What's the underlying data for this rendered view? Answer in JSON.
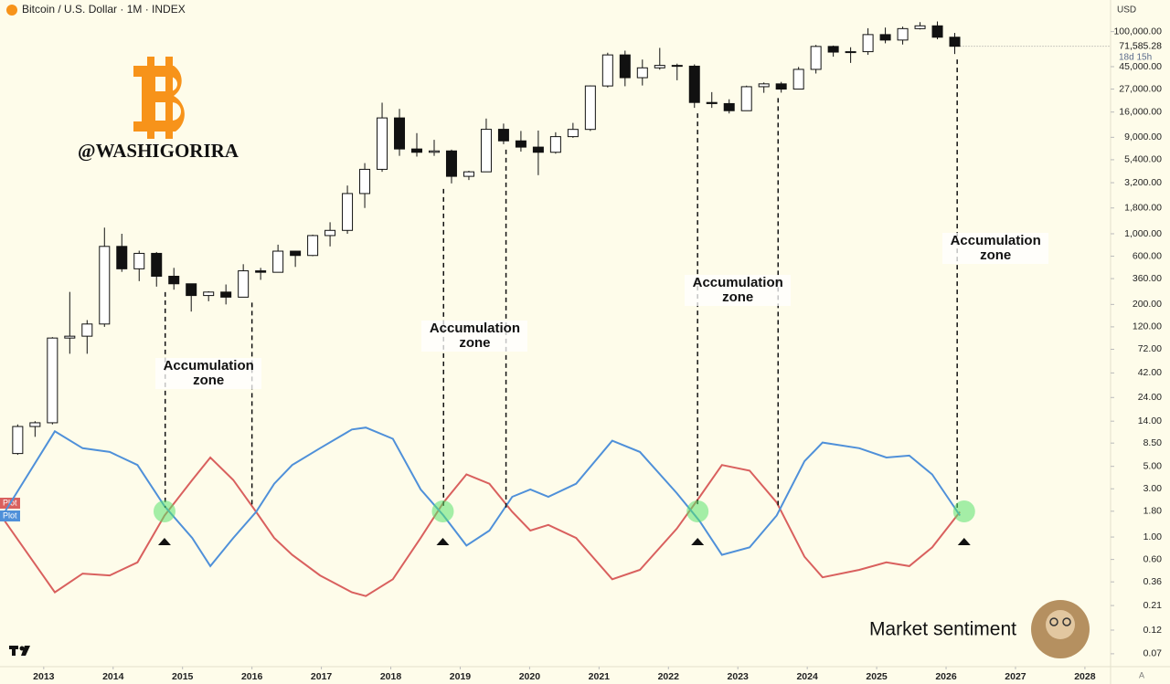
{
  "chart_data": {
    "type": "candlestick",
    "title": "Bitcoin / U.S. Dollar · 1M · INDEX",
    "currency": "USD",
    "watermark": "@WASHIGORIRA",
    "caption": "Market sentiment",
    "log_scale": true,
    "xlim": [
      2012.37,
      2028.37
    ],
    "xticks": [
      2013,
      2014,
      2015,
      2016,
      2017,
      2018,
      2019,
      2020,
      2021,
      2022,
      2023,
      2024,
      2025,
      2026,
      2027,
      2028
    ],
    "ylim": [
      0.0522,
      205400
    ],
    "yticks": [
      {
        "value": 100000,
        "label": "100,000.00"
      },
      {
        "value": 45000,
        "label": "45,000.00"
      },
      {
        "value": 27000,
        "label": "27,000.00"
      },
      {
        "value": 16000,
        "label": "16,000.00"
      },
      {
        "value": 9000,
        "label": "9,000.00"
      },
      {
        "value": 5400,
        "label": "5,400.00"
      },
      {
        "value": 3200,
        "label": "3,200.00"
      },
      {
        "value": 1800,
        "label": "1,800.00"
      },
      {
        "value": 1000,
        "label": "1,000.00"
      },
      {
        "value": 600,
        "label": "600.00"
      },
      {
        "value": 360,
        "label": "360.00"
      },
      {
        "value": 200,
        "label": "200.00"
      },
      {
        "value": 120,
        "label": "120.00"
      },
      {
        "value": 72,
        "label": "72.00"
      },
      {
        "value": 42,
        "label": "42.00"
      },
      {
        "value": 24,
        "label": "24.00"
      },
      {
        "value": 14,
        "label": "14.00"
      },
      {
        "value": 8.5,
        "label": "8.50"
      },
      {
        "value": 5,
        "label": "5.00"
      },
      {
        "value": 3,
        "label": "3.00"
      },
      {
        "value": 1.8,
        "label": "1.80"
      },
      {
        "value": 1,
        "label": "1.00"
      },
      {
        "value": 0.6,
        "label": "0.60"
      },
      {
        "value": 0.36,
        "label": "0.36"
      },
      {
        "value": 0.21,
        "label": "0.21"
      },
      {
        "value": 0.12,
        "label": "0.12"
      },
      {
        "value": 0.07,
        "label": "0.07"
      }
    ],
    "last_price": {
      "value": 71585.28,
      "label": "71,585.28"
    },
    "countdown": "18d 15h",
    "candles": {
      "x": [
        2012.625,
        2012.875,
        2013.125,
        2013.375,
        2013.625,
        2013.875,
        2014.125,
        2014.375,
        2014.625,
        2014.875,
        2015.125,
        2015.375,
        2015.625,
        2015.875,
        2016.125,
        2016.375,
        2016.625,
        2016.875,
        2017.125,
        2017.375,
        2017.625,
        2017.875,
        2018.125,
        2018.375,
        2018.625,
        2018.875,
        2019.125,
        2019.375,
        2019.625,
        2019.875,
        2020.125,
        2020.375,
        2020.625,
        2020.875,
        2021.125,
        2021.375,
        2021.625,
        2021.875,
        2022.125,
        2022.375,
        2022.625,
        2022.875,
        2023.125,
        2023.375,
        2023.625,
        2023.875,
        2024.125,
        2024.375,
        2024.625,
        2024.875,
        2025.125,
        2025.375,
        2025.625,
        2025.875,
        2026.125
      ],
      "open": [
        6.7,
        12.4,
        13.5,
        93,
        97,
        128,
        750,
        450,
        640,
        380,
        320,
        245,
        265,
        236,
        430,
        416,
        673,
        610,
        960,
        1080,
        2500,
        4340,
        14000,
        6900,
        6400,
        6600,
        3700,
        4100,
        10800,
        8300,
        7200,
        6400,
        9140,
        10780,
        29000,
        58800,
        35000,
        43800,
        46300,
        45500,
        19900,
        19400,
        16500,
        28500,
        30400,
        27000,
        42300,
        71300,
        62700,
        63300,
        93400,
        82500,
        107000,
        114000,
        88000
      ],
      "high": [
        13,
        14,
        95,
        266,
        140,
        1150,
        1000,
        680,
        660,
        460,
        320,
        270,
        315,
        500,
        460,
        780,
        680,
        980,
        1300,
        3000,
        5000,
        19800,
        17200,
        9900,
        8500,
        6800,
        4200,
        13800,
        12300,
        10400,
        10500,
        10100,
        12500,
        29300,
        61800,
        64800,
        52900,
        69000,
        48200,
        47400,
        25200,
        21400,
        29200,
        31400,
        31800,
        44700,
        73800,
        72800,
        70000,
        108000,
        109600,
        112000,
        124000,
        126000,
        97000
      ],
      "low": [
        6.5,
        9.8,
        13,
        65,
        65,
        120,
        420,
        340,
        300,
        280,
        170,
        215,
        200,
        236,
        350,
        415,
        470,
        600,
        750,
        1000,
        1800,
        4100,
        5900,
        5800,
        5900,
        3150,
        3400,
        4100,
        7700,
        6500,
        3800,
        6200,
        8900,
        10400,
        28000,
        28800,
        29300,
        42000,
        33000,
        17600,
        17600,
        15500,
        16500,
        24800,
        24900,
        26900,
        38500,
        56500,
        49000,
        58900,
        76600,
        74500,
        105000,
        84000,
        60000
      ],
      "close": [
        12.4,
        13.5,
        93,
        97,
        128,
        750,
        450,
        640,
        380,
        320,
        245,
        265,
        236,
        430,
        416,
        673,
        610,
        960,
        1080,
        2500,
        4340,
        14000,
        6900,
        6400,
        6600,
        3700,
        4100,
        10800,
        8300,
        7200,
        6400,
        9140,
        10780,
        29000,
        58800,
        35000,
        43800,
        46300,
        45500,
        19900,
        19400,
        16500,
        28500,
        30400,
        27000,
        42300,
        71300,
        62700,
        63300,
        93400,
        82500,
        107000,
        114000,
        88000,
        71585
      ]
    },
    "y2lim": [
      0,
      100
    ],
    "osc_x": [
      2012.44,
      2013.16,
      2013.56,
      2013.95,
      2014.35,
      2014.74,
      2015.14,
      2015.4,
      2015.73,
      2016.06,
      2016.32,
      2016.58,
      2016.98,
      2017.44,
      2017.64,
      2018.03,
      2018.43,
      2018.76,
      2019.09,
      2019.42,
      2019.75,
      2020.01,
      2020.27,
      2020.67,
      2021.19,
      2021.59,
      2022.12,
      2022.45,
      2022.77,
      2023.17,
      2023.56,
      2023.96,
      2024.22,
      2024.75,
      2025.14,
      2025.47,
      2025.8,
      2026.2
    ],
    "series": [
      {
        "name": "Plot",
        "color": "#d9605e",
        "axis": "y2",
        "values": [
          46,
          8,
          18,
          17,
          24,
          49,
          68,
          80,
          68,
          51,
          37,
          28,
          17,
          8,
          6,
          15,
          37,
          56,
          71,
          66,
          51,
          41,
          44,
          37,
          15,
          20,
          42,
          59,
          76,
          73,
          56,
          27,
          16,
          20,
          24,
          22,
          32,
          51
        ]
      },
      {
        "name": "Plot",
        "color": "#4f90d9",
        "axis": "y2",
        "values": [
          51,
          94,
          85,
          83,
          76,
          54,
          37,
          22,
          37,
          51,
          66,
          76,
          85,
          95,
          96,
          90,
          63,
          49,
          33,
          41,
          59,
          63,
          59,
          66,
          89,
          83,
          61,
          46,
          28,
          32,
          49,
          78,
          88,
          85,
          80,
          81,
          71,
          49
        ]
      }
    ],
    "signals": [
      2014.74,
      2018.75,
      2022.42,
      2026.26
    ],
    "zones": [
      {
        "start": 2014.75,
        "end": 2016.0,
        "label": "Accumulation zone"
      },
      {
        "start": 2018.76,
        "end": 2019.66,
        "label": "Accumulation zone"
      },
      {
        "start": 2022.42,
        "end": 2023.58,
        "label": "Accumulation zone"
      },
      {
        "start": 2026.16,
        "end": null,
        "label": "Accumulation zone"
      }
    ]
  }
}
